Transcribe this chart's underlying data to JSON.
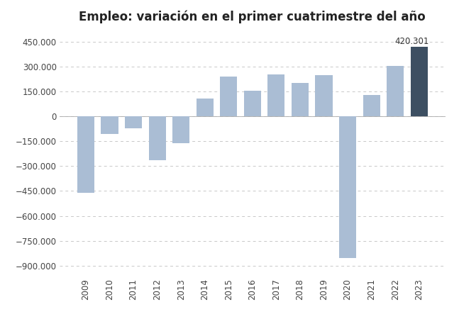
{
  "title": "Empleo: variación en el primer cuatrimestre del año",
  "years": [
    2009,
    2010,
    2011,
    2012,
    2013,
    2014,
    2015,
    2016,
    2017,
    2018,
    2019,
    2020,
    2021,
    2022,
    2023
  ],
  "values": [
    -460000,
    -105000,
    -70000,
    -265000,
    -160000,
    110000,
    240000,
    155000,
    255000,
    200000,
    250000,
    -855000,
    130000,
    305000,
    420301
  ],
  "bar_color_light": "#aabdd4",
  "bar_color_dark": "#3d4f62",
  "highlight_year": 2023,
  "annotation_value": "420.301",
  "ylim": [
    -960000,
    520000
  ],
  "yticks": [
    -900000,
    -750000,
    -600000,
    -450000,
    -300000,
    -150000,
    0,
    150000,
    300000,
    450000
  ],
  "background_color": "#ffffff",
  "grid_color": "#c8c8c8",
  "title_fontsize": 12,
  "tick_fontsize": 8.5,
  "annotation_fontsize": 8.5
}
